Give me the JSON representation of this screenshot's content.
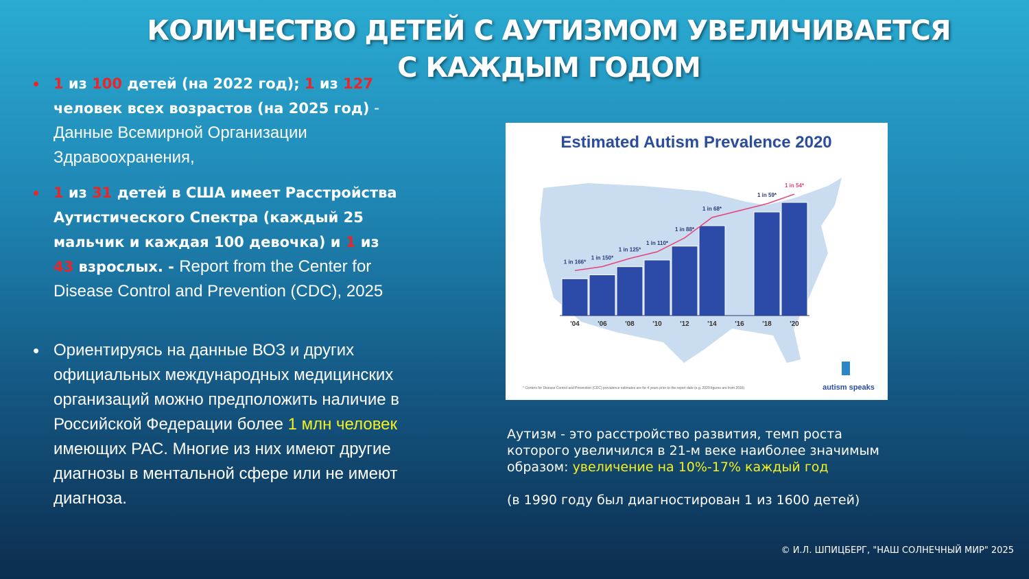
{
  "title": [
    "КОЛИЧЕСТВО ДЕТЕЙ С АУТИЗМОМ УВЕЛИЧИВАЕТСЯ",
    "С КАЖДЫМ ГОДОМ"
  ],
  "bullets": [
    [
      {
        "text": "1",
        "color": "#e8262a",
        "bold": true
      },
      {
        "text": " из ",
        "color": "#ffffff",
        "bold": true
      },
      {
        "text": "100",
        "color": "#e8262a",
        "bold": true
      },
      {
        "text": " детей (на 2022 год); ",
        "color": "#ffffff",
        "bold": true
      },
      {
        "text": "1",
        "color": "#e8262a",
        "bold": true
      },
      {
        "text": " из ",
        "color": "#ffffff",
        "bold": true
      },
      {
        "text": "127",
        "color": "#e8262a",
        "bold": true
      },
      {
        "text": " человек всех возрастов (на 2025 год)",
        "color": "#ffffff",
        "bold": true
      },
      {
        "text": " - Данные Всемирной Организации Здравоохранения,",
        "color": "#ffffff",
        "bold": false
      }
    ],
    [
      {
        "text": "1",
        "color": "#e8262a",
        "bold": true
      },
      {
        "text": "  из ",
        "color": "#ffffff",
        "bold": true
      },
      {
        "text": "31",
        "color": "#e8262a",
        "bold": true
      },
      {
        "text": " детей в США имеет Расстройства Аутистического Спектра (каждый 25 мальчик и каждая 100 девочка) и ",
        "color": "#ffffff",
        "bold": true
      },
      {
        "text": "1",
        "color": "#e8262a",
        "bold": true
      },
      {
        "text": " из ",
        "color": "#ffffff",
        "bold": true
      },
      {
        "text": "43",
        "color": "#e8262a",
        "bold": true
      },
      {
        "text": " взрослых. - ",
        "color": "#ffffff",
        "bold": true
      },
      {
        "text": "Report from the Center for Disease Control and Prevention (CDC), 2025",
        "color": "#ffffff",
        "bold": false
      }
    ],
    [
      {
        "text": "Ориентируясь на данные ВОЗ и других официальных международных медицинских организаций можно предположить наличие в Российской Федерации более ",
        "color": "#ffffff",
        "bold": false
      },
      {
        "text": "1 млн человек",
        "color": "#f5f020",
        "bold": false
      },
      {
        "text": " имеющих РАС. Многие из них имеют другие диагнозы в ментальной сфере или не имеют диагноза.",
        "color": "#ffffff",
        "bold": false
      }
    ]
  ],
  "chart": {
    "type": "bar",
    "title": "Estimated Autism Prevalence 2020",
    "categories": [
      "'04",
      "'06",
      "'08",
      "'10",
      "'12",
      "'14",
      "'16",
      "'18",
      "'20"
    ],
    "values": [
      166,
      150,
      125,
      110,
      88,
      68,
      null,
      59,
      54
    ],
    "value_labels": [
      "1 in 166*",
      "1 in 150*",
      "1 in 125*",
      "1 in 110*",
      "1 in 88*",
      "1 in 68*",
      null,
      "1 in 59*",
      "1 in 54*"
    ],
    "color": "#2c4aa8",
    "line_color": "#e8407a",
    "footnote": "* Centers for Disease Control and Prevention (CDC) prevalence estimates are for 4 years prior to the report date (e.g. 2020 figures are from 2016)",
    "logo": "autism speaks"
  },
  "caption": [
    [
      {
        "text": "Аутизм - это расстройство развития, темп роста которого увеличился в 21-м веке наиболее значимым образом: ",
        "color": "#ffffff",
        "bold": false
      },
      {
        "text": "увеличение на 10%-17% каждый год",
        "color": "#f5f020",
        "bold": false
      }
    ],
    [
      {
        "text": "(в 1990 году был диагностирован 1 из 1600 детей)",
        "color": "#ffffff",
        "bold": false
      }
    ]
  ],
  "footer": "© И.Л. ШПИЦБЕРГ, \"НАШ СОЛНЕЧНЫЙ МИР\" 2025"
}
